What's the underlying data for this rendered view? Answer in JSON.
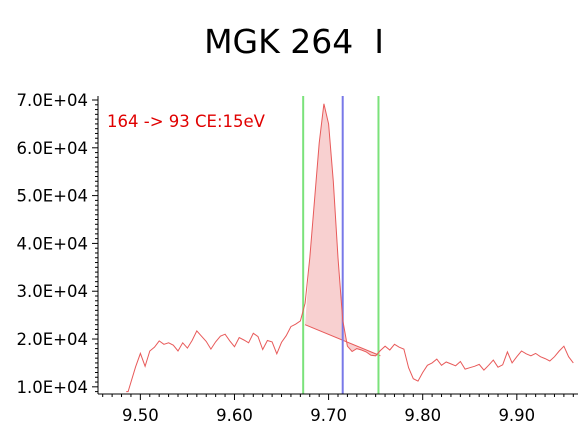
{
  "chart_data": {
    "type": "line",
    "title": "MGK 264  I",
    "annotation": "164 -> 93 CE:15eV",
    "xlim": [
      9.455,
      9.965
    ],
    "ylim": [
      8500,
      70000
    ],
    "x_ticks": [
      "9.50",
      "9.60",
      "9.70",
      "9.80",
      "9.90"
    ],
    "y_ticks": [
      "1.0E+04",
      "2.0E+04",
      "3.0E+04",
      "4.0E+04",
      "5.0E+04",
      "6.0E+04",
      "7.0E+04"
    ],
    "grid": false,
    "series": [
      {
        "name": "",
        "color": "#e85a5a",
        "x": [
          9.485,
          9.487,
          9.495,
          9.5,
          9.505,
          9.51,
          9.515,
          9.52,
          9.525,
          9.53,
          9.535,
          9.54,
          9.545,
          9.55,
          9.555,
          9.56,
          9.565,
          9.57,
          9.575,
          9.58,
          9.585,
          9.59,
          9.595,
          9.6,
          9.605,
          9.61,
          9.615,
          9.62,
          9.625,
          9.63,
          9.635,
          9.64,
          9.645,
          9.65,
          9.655,
          9.66,
          9.665,
          9.67,
          9.675,
          9.68,
          9.685,
          9.69,
          9.695,
          9.7,
          9.705,
          9.71,
          9.715,
          9.72,
          9.725,
          9.73,
          9.735,
          9.74,
          9.745,
          9.75,
          9.755,
          9.76,
          9.765,
          9.77,
          9.775,
          9.78,
          9.785,
          9.79,
          9.795,
          9.8,
          9.805,
          9.81,
          9.815,
          9.82,
          9.825,
          9.83,
          9.835,
          9.84,
          9.845,
          9.85,
          9.855,
          9.86,
          9.865,
          9.87,
          9.875,
          9.88,
          9.885,
          9.89,
          9.895,
          9.9,
          9.905,
          9.91,
          9.915,
          9.92,
          9.925,
          9.93,
          9.935,
          9.94,
          9.945,
          9.95,
          9.955,
          9.96
        ],
        "y": [
          9000,
          9000,
          14200,
          17000,
          14300,
          17500,
          18300,
          19600,
          18900,
          19200,
          18700,
          17500,
          19200,
          18100,
          19700,
          21700,
          20600,
          19500,
          17900,
          19400,
          20600,
          21000,
          19600,
          18400,
          20300,
          19800,
          19200,
          21200,
          20500,
          17800,
          19700,
          19400,
          16900,
          19300,
          20700,
          22600,
          23100,
          23800,
          27500,
          37000,
          49000,
          61000,
          69200,
          65000,
          53000,
          37000,
          24000,
          18500,
          17400,
          18000,
          17700,
          17300,
          16600,
          16500,
          17600,
          18500,
          17700,
          18900,
          18300,
          17900,
          14000,
          11700,
          11200,
          13000,
          14500,
          15000,
          15800,
          14500,
          15200,
          14800,
          14400,
          15300,
          13700,
          14000,
          14300,
          14700,
          13500,
          14500,
          15600,
          14100,
          14600,
          17300,
          15000,
          16300,
          17500,
          16900,
          16500,
          17000,
          16300,
          15900,
          15400,
          16300,
          17500,
          18500,
          16300,
          15000
        ]
      }
    ],
    "peak": {
      "start_x": 9.675,
      "start_y": 23000,
      "end_x": 9.755,
      "end_y": 16500,
      "fill_color": "#f8d0d0"
    },
    "markers": [
      {
        "x": 9.673,
        "color": "#7be27b"
      },
      {
        "x": 9.715,
        "color": "#7878e8"
      },
      {
        "x": 9.753,
        "color": "#7be27b"
      }
    ],
    "annotation_color": "#e00000"
  }
}
